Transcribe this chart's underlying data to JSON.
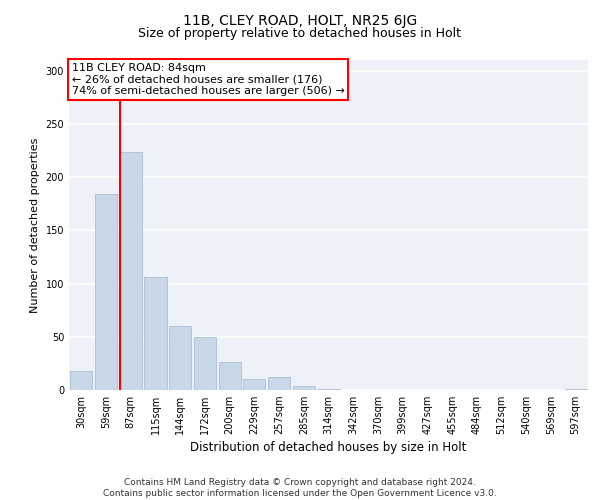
{
  "title1": "11B, CLEY ROAD, HOLT, NR25 6JG",
  "title2": "Size of property relative to detached houses in Holt",
  "xlabel": "Distribution of detached houses by size in Holt",
  "ylabel": "Number of detached properties",
  "bin_labels": [
    "30sqm",
    "59sqm",
    "87sqm",
    "115sqm",
    "144sqm",
    "172sqm",
    "200sqm",
    "229sqm",
    "257sqm",
    "285sqm",
    "314sqm",
    "342sqm",
    "370sqm",
    "399sqm",
    "427sqm",
    "455sqm",
    "484sqm",
    "512sqm",
    "540sqm",
    "569sqm",
    "597sqm"
  ],
  "bar_heights": [
    18,
    184,
    224,
    106,
    60,
    50,
    26,
    10,
    12,
    4,
    1,
    0,
    0,
    0,
    0,
    0,
    0,
    0,
    0,
    0,
    1
  ],
  "bar_color": "#c8d8e8",
  "bar_edge_color": "#a0b8cc",
  "annotation_text": "11B CLEY ROAD: 84sqm\n← 26% of detached houses are smaller (176)\n74% of semi-detached houses are larger (506) →",
  "annotation_box_color": "white",
  "annotation_box_edge_color": "red",
  "property_line_x": 2,
  "property_line_color": "red",
  "ylim": [
    0,
    310
  ],
  "yticks": [
    0,
    50,
    100,
    150,
    200,
    250,
    300
  ],
  "background_color": "#eef2f8",
  "grid_color": "white",
  "footer_text": "Contains HM Land Registry data © Crown copyright and database right 2024.\nContains public sector information licensed under the Open Government Licence v3.0.",
  "title1_fontsize": 10,
  "title2_fontsize": 9,
  "xlabel_fontsize": 8.5,
  "ylabel_fontsize": 8,
  "tick_fontsize": 7,
  "annotation_fontsize": 8,
  "footer_fontsize": 6.5
}
